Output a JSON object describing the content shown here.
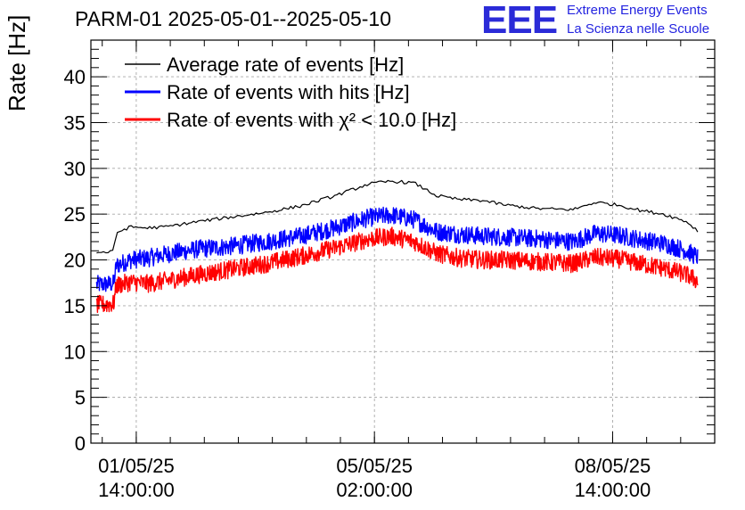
{
  "header": {
    "title": "PARM-01 2025-05-01--2025-05-10",
    "logo_text": "EEE",
    "logo_line1": "Extreme Energy Events",
    "logo_line2": "La Scienza nelle Scuole"
  },
  "chart_data": {
    "type": "line",
    "title": "PARM-01 2025-05-01--2025-05-10",
    "ylabel": "Rate [Hz]",
    "xlabel": "",
    "ylim": [
      0,
      44
    ],
    "yticks": [
      0,
      5,
      10,
      15,
      20,
      25,
      30,
      35,
      40
    ],
    "xlim": [
      "2025-04-30 22:00:00",
      "2025-05-10 02:00:00"
    ],
    "xticks": [
      {
        "date": "01/05/25",
        "time": "14:00:00",
        "at": "2025-05-01 14:00:00"
      },
      {
        "date": "05/05/25",
        "time": "02:00:00",
        "at": "2025-05-05 02:00:00"
      },
      {
        "date": "08/05/25",
        "time": "14:00:00",
        "at": "2025-05-08 14:00:00"
      }
    ],
    "grid": true,
    "legend_position": "top-left",
    "series": [
      {
        "name": "Average rate of events [Hz]",
        "color": "#000000",
        "style": "smooth",
        "x": [
          "2025-05-01 00:00",
          "2025-05-01 06:00",
          "2025-05-01 07:00",
          "2025-05-01 12:00",
          "2025-05-01 18:00",
          "2025-05-02 00:00",
          "2025-05-02 12:00",
          "2025-05-03 00:00",
          "2025-05-03 12:00",
          "2025-05-04 00:00",
          "2025-05-04 12:00",
          "2025-05-05 00:00",
          "2025-05-05 08:00",
          "2025-05-05 16:00",
          "2025-05-06 00:00",
          "2025-05-06 08:00",
          "2025-05-06 16:00",
          "2025-05-07 00:00",
          "2025-05-07 12:00",
          "2025-05-08 00:00",
          "2025-05-08 08:00",
          "2025-05-08 16:00",
          "2025-05-09 00:00",
          "2025-05-09 08:00",
          "2025-05-09 16:00",
          "2025-05-09 20:00"
        ],
        "y": [
          20.8,
          20.9,
          23.0,
          23.6,
          23.5,
          23.6,
          24.2,
          24.7,
          25.2,
          25.9,
          27.0,
          28.3,
          28.6,
          28.4,
          27.0,
          26.6,
          26.5,
          26.0,
          25.6,
          25.5,
          26.3,
          26.0,
          25.4,
          25.0,
          24.2,
          23.2
        ]
      },
      {
        "name": "Rate of events with hits [Hz]",
        "color": "#0000ff",
        "style": "noisy",
        "noise": 1.0,
        "x": [
          "2025-05-01 00:00",
          "2025-05-01 06:00",
          "2025-05-01 07:00",
          "2025-05-01 12:00",
          "2025-05-01 18:00",
          "2025-05-02 00:00",
          "2025-05-02 12:00",
          "2025-05-03 00:00",
          "2025-05-03 12:00",
          "2025-05-04 00:00",
          "2025-05-04 12:00",
          "2025-05-05 00:00",
          "2025-05-05 08:00",
          "2025-05-05 16:00",
          "2025-05-06 00:00",
          "2025-05-06 08:00",
          "2025-05-06 16:00",
          "2025-05-07 00:00",
          "2025-05-07 12:00",
          "2025-05-08 00:00",
          "2025-05-08 08:00",
          "2025-05-08 16:00",
          "2025-05-09 00:00",
          "2025-05-09 08:00",
          "2025-05-09 16:00",
          "2025-05-09 20:00"
        ],
        "y": [
          17.3,
          17.4,
          19.4,
          20.0,
          20.2,
          20.6,
          21.2,
          21.5,
          22.0,
          22.6,
          23.5,
          24.6,
          24.9,
          24.4,
          23.1,
          22.8,
          22.6,
          22.5,
          22.3,
          22.0,
          22.9,
          22.7,
          22.2,
          21.8,
          21.0,
          20.3
        ]
      },
      {
        "name": "Rate of events with χ² < 10.0 [Hz]",
        "color": "#ff0000",
        "style": "noisy",
        "noise": 1.0,
        "x": [
          "2025-05-01 00:00",
          "2025-05-01 06:00",
          "2025-05-01 07:00",
          "2025-05-01 12:00",
          "2025-05-01 18:00",
          "2025-05-02 00:00",
          "2025-05-02 12:00",
          "2025-05-03 00:00",
          "2025-05-03 12:00",
          "2025-05-04 00:00",
          "2025-05-04 12:00",
          "2025-05-05 00:00",
          "2025-05-05 08:00",
          "2025-05-05 16:00",
          "2025-05-06 00:00",
          "2025-05-06 08:00",
          "2025-05-06 16:00",
          "2025-05-07 00:00",
          "2025-05-07 12:00",
          "2025-05-08 00:00",
          "2025-05-08 08:00",
          "2025-05-08 16:00",
          "2025-05-09 00:00",
          "2025-05-09 08:00",
          "2025-05-09 16:00",
          "2025-05-09 20:00"
        ],
        "y": [
          15.1,
          15.2,
          17.2,
          17.6,
          17.4,
          17.7,
          18.4,
          19.0,
          19.6,
          20.4,
          21.3,
          22.3,
          22.6,
          22.0,
          20.7,
          20.2,
          20.0,
          20.0,
          19.8,
          19.6,
          20.3,
          20.1,
          19.6,
          19.1,
          18.4,
          17.7
        ]
      }
    ]
  }
}
